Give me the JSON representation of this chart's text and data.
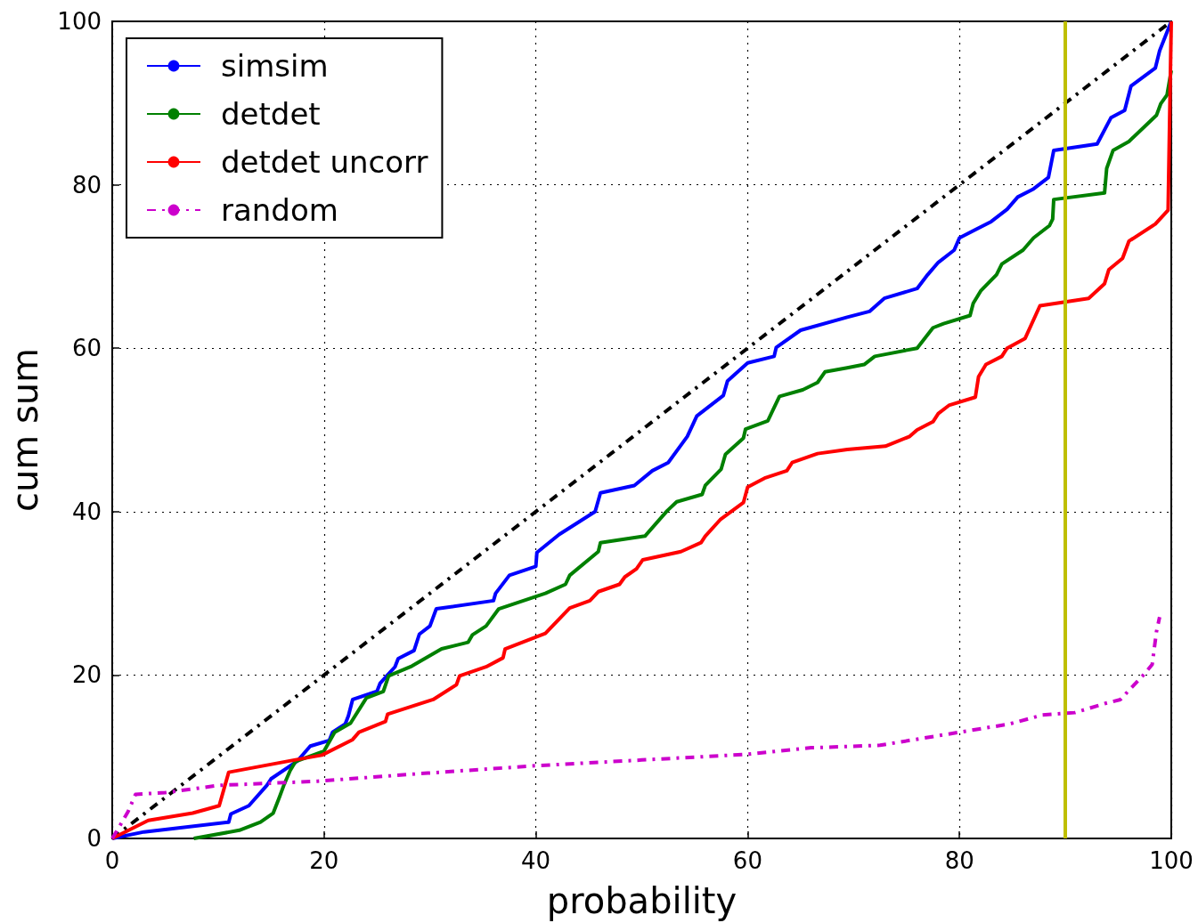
{
  "chart_data": {
    "type": "line",
    "xlabel": "probability",
    "ylabel": "cum sum",
    "xlim": [
      0,
      100
    ],
    "xticks": [
      0,
      20,
      40,
      60,
      80,
      100
    ],
    "ylim": [
      0,
      100
    ],
    "yticks": [
      0,
      20,
      40,
      60,
      80,
      100
    ],
    "grid": true,
    "legend": "top left",
    "marker": "none",
    "line_style": "solid",
    "series": [
      {
        "name": "simsim",
        "color": "#0000ff",
        "x": [
          0,
          3,
          11,
          11.2,
          12.9,
          14.6,
          15,
          17.5,
          18.7,
          20.5,
          20.8,
          22,
          22.3,
          22.7,
          25,
          25.3,
          26,
          26.7,
          27,
          28.5,
          29,
          30,
          30.6,
          36,
          36.2,
          37.5,
          40,
          40.1,
          42.2,
          45.6,
          46.1,
          49.3,
          51,
          52.5,
          54.3,
          55.2,
          57.7,
          58.1,
          60,
          62.5,
          62.7,
          65,
          69.4,
          71.5,
          72.9,
          76,
          77,
          78,
          79.5,
          80,
          83,
          84.5,
          85.5,
          87,
          88.4,
          88.9,
          93,
          94.3,
          95.6,
          96.2,
          98.5,
          98.9,
          100
        ],
        "values": [
          0,
          0.8,
          2,
          3,
          4,
          6.5,
          7.3,
          9.5,
          11.3,
          12,
          13,
          14,
          15,
          17,
          18,
          19,
          20,
          21,
          22,
          23,
          25,
          26,
          28.1,
          29.1,
          30,
          32.2,
          33.3,
          35,
          37.2,
          40,
          42.3,
          43.2,
          45,
          46,
          49.2,
          51.7,
          54.2,
          56,
          58.2,
          59,
          60.1,
          62.2,
          63.8,
          64.5,
          66.1,
          67.3,
          69,
          70.5,
          72,
          73.5,
          75.5,
          77,
          78.5,
          79.5,
          80.9,
          84.2,
          85,
          88.2,
          89.1,
          92.1,
          94.3,
          96.4,
          100
        ]
      },
      {
        "name": "detdet",
        "color": "#008000",
        "x": [
          7.7,
          12,
          14,
          15.2,
          15.8,
          16.2,
          16.8,
          17.3,
          20,
          21,
          22.5,
          24,
          25.6,
          26.1,
          28.3,
          31.1,
          33.6,
          34,
          35.3,
          36.5,
          40.9,
          42.8,
          43.2,
          45.9,
          46.1,
          50.3,
          52.4,
          53.3,
          55.7,
          56,
          57.5,
          57.9,
          59.6,
          59.8,
          61.9,
          63,
          65.2,
          66.6,
          67.3,
          69.4,
          71,
          72,
          76,
          77.5,
          78.5,
          81,
          81.3,
          82,
          83.5,
          84,
          86,
          87,
          88.5,
          88.8,
          88.9,
          93.7,
          93.9,
          94.5,
          96,
          97.3,
          98.6,
          99,
          99.6,
          100
        ],
        "values": [
          0,
          1,
          2,
          3.1,
          5.1,
          6.5,
          8.3,
          9.4,
          10.7,
          13,
          14.1,
          17.2,
          18,
          19.9,
          21.1,
          23.2,
          24,
          24.9,
          26,
          28.1,
          30,
          31.1,
          32.2,
          35.1,
          36.2,
          37,
          40.1,
          41.2,
          42.1,
          43.2,
          45.2,
          47,
          49,
          50.1,
          51.1,
          54.1,
          54.9,
          55.8,
          57.1,
          57.6,
          58,
          59,
          60,
          62.5,
          63,
          64,
          65.5,
          67,
          69,
          70.3,
          72,
          73.5,
          75,
          75.8,
          78.2,
          79,
          82,
          84.2,
          85.3,
          86.9,
          88.5,
          89.9,
          91,
          94
        ]
      },
      {
        "name": "detdet uncorr",
        "color": "#ff0000",
        "x": [
          0,
          3.4,
          7.6,
          10.1,
          11,
          17.2,
          19.8,
          22.7,
          23.3,
          25.8,
          26,
          30.3,
          32.5,
          32.8,
          35.3,
          36.9,
          37.1,
          40.9,
          43.2,
          45.1,
          45.9,
          47.9,
          48.4,
          49.5,
          50.1,
          53.7,
          55.6,
          56,
          57.4,
          59.6,
          60,
          61.6,
          63.7,
          64.2,
          66.6,
          69.4,
          73,
          75.3,
          76,
          77.5,
          78,
          79,
          81.5,
          81.8,
          82.5,
          84,
          84.5,
          86.2,
          87.6,
          92.2,
          93.7,
          94.1,
          95.4,
          96,
          98.5,
          99.7,
          100
        ],
        "values": [
          0,
          2.2,
          3.1,
          4,
          8.1,
          9.6,
          10.2,
          12.1,
          13,
          14.3,
          15.2,
          17,
          18.8,
          19.9,
          21,
          22.1,
          23.2,
          25.1,
          28.2,
          29.1,
          30.2,
          31.1,
          32,
          33,
          34.1,
          35.1,
          36.2,
          37,
          39,
          41.1,
          43,
          44.1,
          45,
          46,
          47.1,
          47.6,
          48,
          49.2,
          50,
          51,
          52,
          53,
          54,
          56.5,
          58,
          59,
          60,
          61.2,
          65.2,
          66.1,
          67.9,
          69.6,
          71,
          73.1,
          75.2,
          76.9,
          100
        ]
      },
      {
        "name": "random",
        "color": "#cc00cc",
        "line_style": "dashed",
        "x": [
          0,
          0.7,
          1.5,
          2.2,
          5,
          10.1,
          19.4,
          29.8,
          40,
          50,
          60,
          66,
          72.5,
          78.6,
          80,
          84.7,
          87.8,
          90.9,
          93.7,
          95.2,
          96.2,
          97.3,
          98.2,
          98.6,
          98.9
        ],
        "values": [
          0,
          1.5,
          3.3,
          5.4,
          5.6,
          6.5,
          7,
          8,
          8.9,
          9.6,
          10.3,
          11.1,
          11.4,
          12.7,
          13,
          14,
          15.1,
          15.4,
          16.5,
          17,
          18.4,
          19.9,
          21.3,
          25.3,
          27.1
        ]
      },
      {
        "color": "#000000",
        "line_style": "dashed",
        "x": [
          0,
          100
        ],
        "values": [
          0,
          100
        ]
      }
    ],
    "ref_lines": [
      {
        "axis": "x",
        "value": 90,
        "color": "#bfbf00"
      }
    ]
  }
}
